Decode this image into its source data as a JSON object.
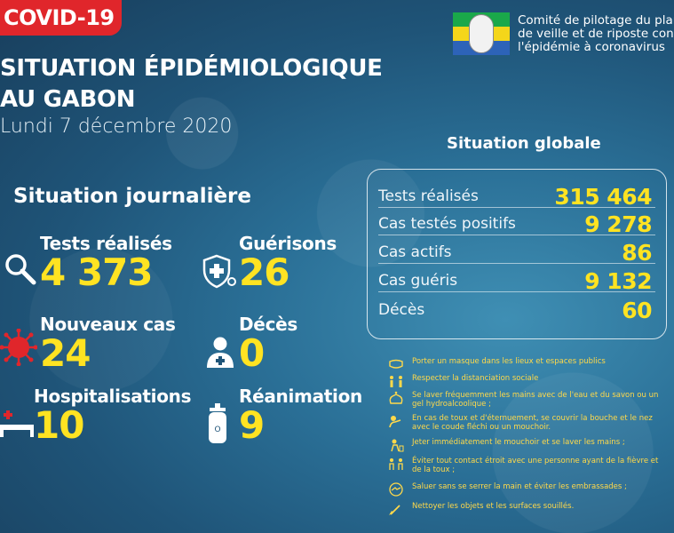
{
  "badge": {
    "label": "COVID-19"
  },
  "title": {
    "line1": "SITUATION ÉPIDÉMIOLOGIQUE",
    "line2": "AU GABON",
    "date": "Lundi 7 décembre 2020"
  },
  "committee": {
    "line1": "Comité de pilotage du plan",
    "line2": "de veille et de riposte contre",
    "line3": "l'épidémie à coronavirus"
  },
  "daily": {
    "heading": "Situation journalière",
    "tests": {
      "label": "Tests réalisés",
      "value": "4 373"
    },
    "recoveries": {
      "label": "Guérisons",
      "value": "26"
    },
    "new_cases": {
      "label": "Nouveaux cas",
      "value": "24"
    },
    "deaths": {
      "label": "Décès",
      "value": "0"
    },
    "hospitalizations": {
      "label": "Hospitalisations",
      "value": "10"
    },
    "icu": {
      "label": "Réanimation",
      "value": "9"
    }
  },
  "global": {
    "heading": "Situation globale",
    "rows": [
      {
        "label": "Tests réalisés",
        "value": "315 464"
      },
      {
        "label": "Cas testés positifs",
        "value": "9 278"
      },
      {
        "label": "Cas actifs",
        "value": "86"
      },
      {
        "label": "Cas guéris",
        "value": "9 132"
      },
      {
        "label": "Décès",
        "value": "60"
      }
    ]
  },
  "advice": [
    {
      "icon": "mask-icon",
      "text": "Porter un masque dans les lieux et espaces publics"
    },
    {
      "icon": "distance-icon",
      "text": "Respecter la distanciation sociale"
    },
    {
      "icon": "handwash-icon",
      "text": "Se laver fréquemment les mains avec de l'eau et du savon ou un gel hydroalcoolique ;"
    },
    {
      "icon": "cough-icon",
      "text": "En cas de toux et d'éternuement, se couvrir la bouche et le nez avec le coude fléchi ou un mouchoir."
    },
    {
      "icon": "tissue-icon",
      "text": "Jeter immédiatement le mouchoir et se laver les mains ;"
    },
    {
      "icon": "avoid-contact-icon",
      "text": "Éviter tout contact étroit avec une personne ayant de la fièvre et de la toux ;"
    },
    {
      "icon": "no-handshake-icon",
      "text": "Saluer sans se serrer la main et éviter les embrassades ;"
    },
    {
      "icon": "cleaning-icon",
      "text": "Nettoyer les objets et les surfaces souillés."
    }
  ],
  "colors": {
    "accent": "#ffe322",
    "badge": "#e0262b",
    "advice_text": "#ffd94a"
  }
}
